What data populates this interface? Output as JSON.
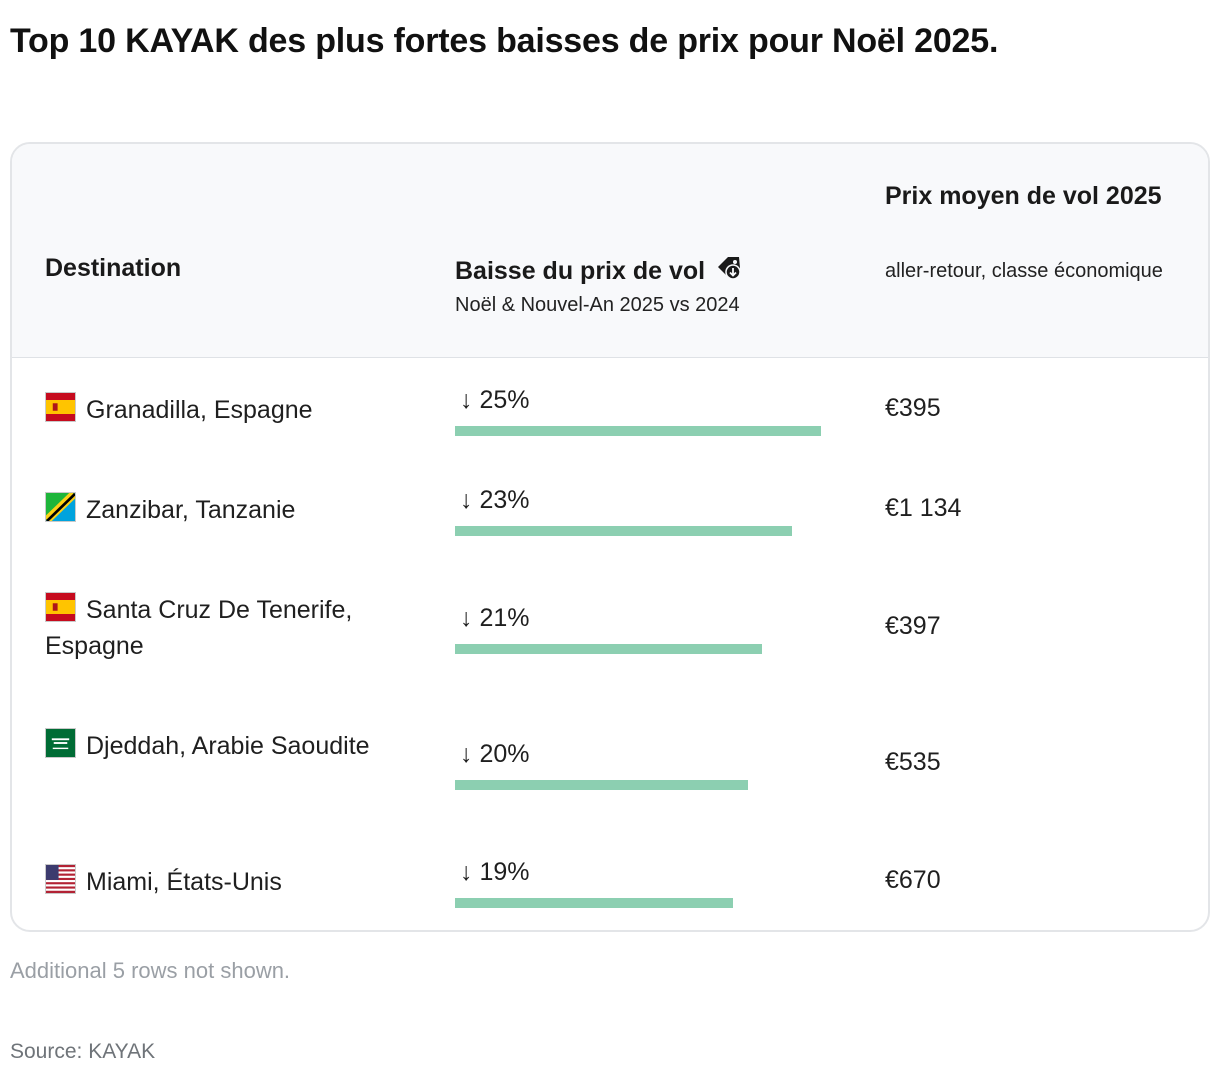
{
  "title": "Top 10 KAYAK des plus fortes baisses de prix pour Noël 2025.",
  "chart_data": {
    "type": "table",
    "columns": {
      "destination": "Destination",
      "drop": "Baisse du prix de vol",
      "drop_sub": "Noël & Nouvel-An 2025 vs 2024",
      "price": "Prix moyen de vol 2025",
      "price_sub": "aller-retour, classe économique"
    },
    "bar_max": 25,
    "bar_color": "#8ccfb1",
    "rows": [
      {
        "flag": "spain-flag-icon",
        "destination": "Granadilla, Espagne",
        "drop": 25,
        "drop_label": "↓ 25%",
        "price": "€395"
      },
      {
        "flag": "tanzania-flag-icon",
        "destination": "Zanzibar, Tanzanie",
        "drop": 23,
        "drop_label": "↓ 23%",
        "price": "€1 134"
      },
      {
        "flag": "spain-flag-icon",
        "destination": "Santa Cruz De Tenerife, Espagne",
        "drop": 21,
        "drop_label": "↓ 21%",
        "price": "€397"
      },
      {
        "flag": "saudi-arabia-flag-icon",
        "destination": "Djeddah, Arabie Saoudite",
        "drop": 20,
        "drop_label": "↓ 20%",
        "price": "€535"
      },
      {
        "flag": "usa-flag-icon",
        "destination": "Miami, États-Unis",
        "drop": 19,
        "drop_label": "↓ 19%",
        "price": "€670"
      }
    ]
  },
  "note": "Additional 5 rows not shown.",
  "source": "Source: KAYAK"
}
